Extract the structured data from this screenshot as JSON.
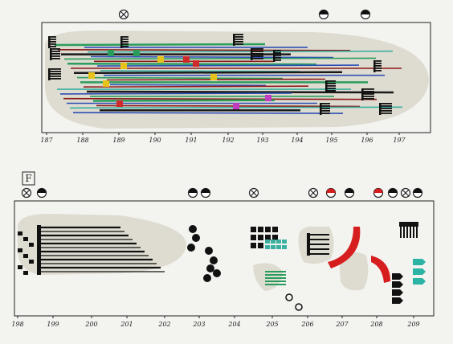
{
  "top_panel": {
    "time_labels": [
      "187",
      "188",
      "189",
      "190",
      "191",
      "192",
      "193",
      "194",
      "195",
      "196",
      "197"
    ]
  },
  "section_marker": "F",
  "bottom_panel": {
    "time_labels": [
      "198",
      "199",
      "200",
      "201",
      "202",
      "203",
      "204",
      "205",
      "206",
      "207",
      "208",
      "209"
    ]
  }
}
